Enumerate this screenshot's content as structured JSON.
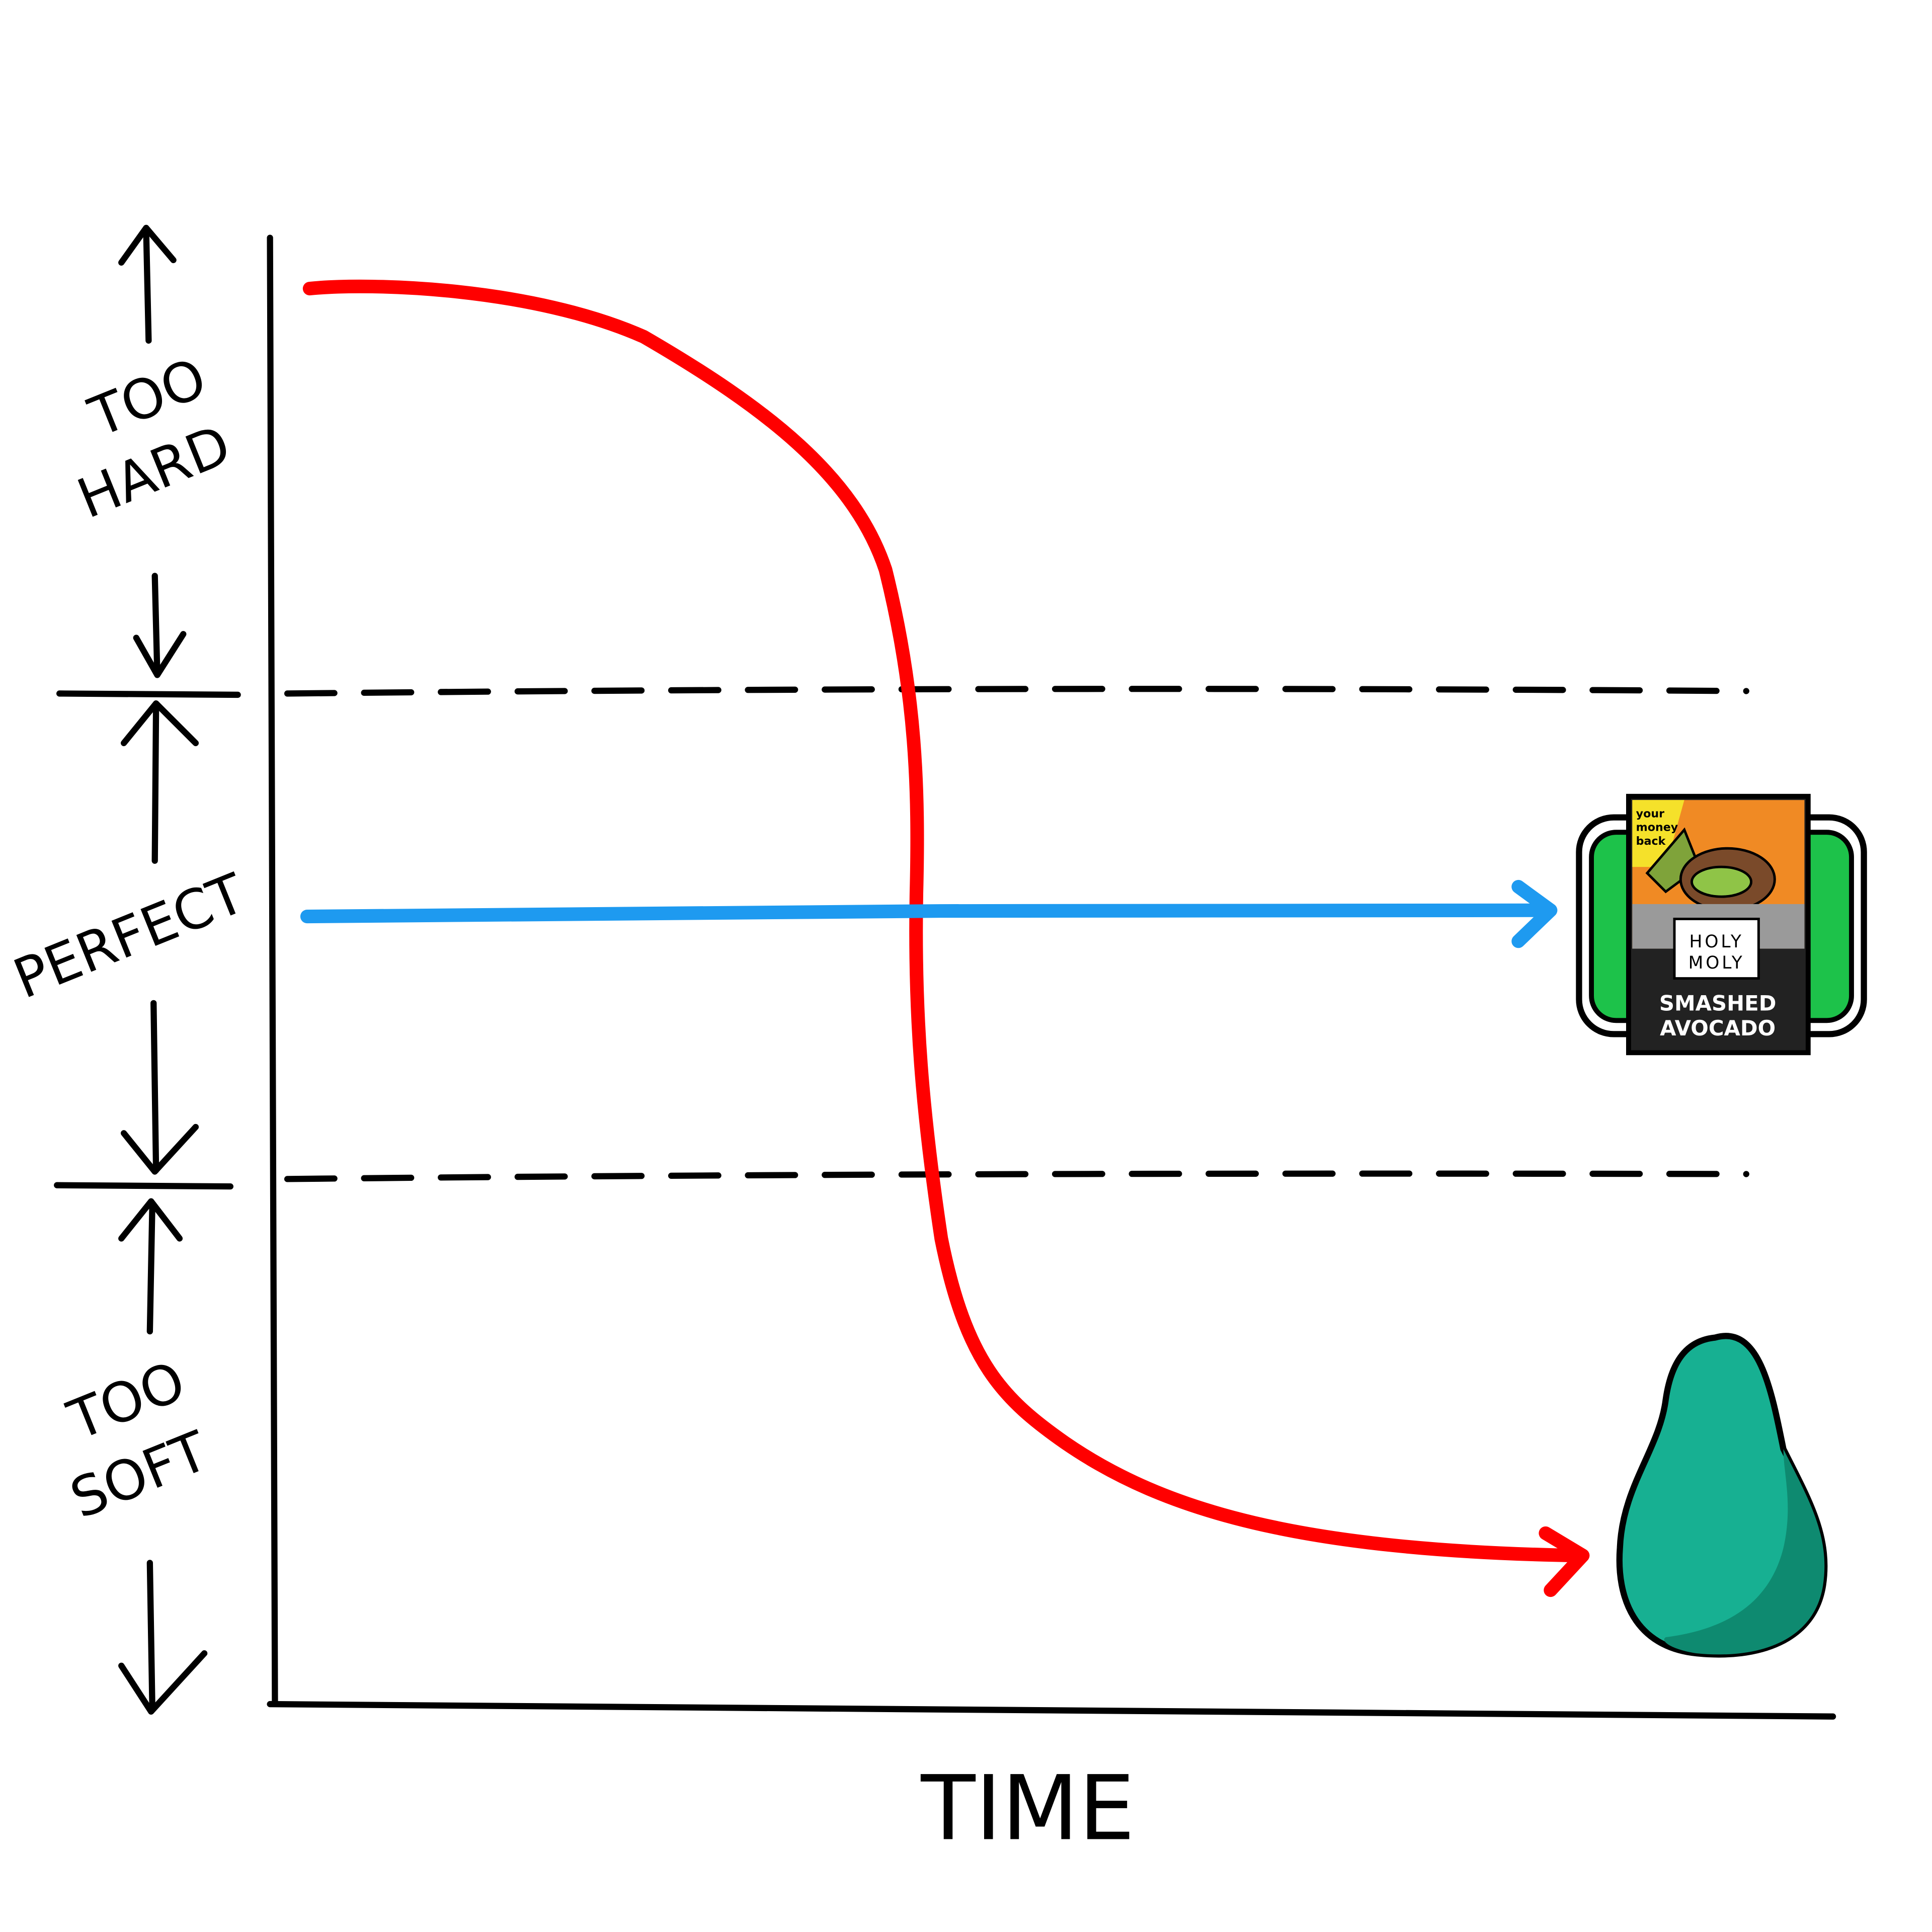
{
  "axis_label": "TIME",
  "zones": [
    {
      "lines": [
        "TOO",
        "HARD"
      ]
    },
    {
      "lines": [
        "PERFECT"
      ]
    },
    {
      "lines": [
        "TOO",
        "SOFT"
      ]
    }
  ],
  "package": {
    "badge": [
      "your",
      "money",
      "back"
    ],
    "brand": [
      "HOLY",
      "MOLY"
    ],
    "product": [
      "SMASHED",
      "AVOCADO"
    ]
  }
}
